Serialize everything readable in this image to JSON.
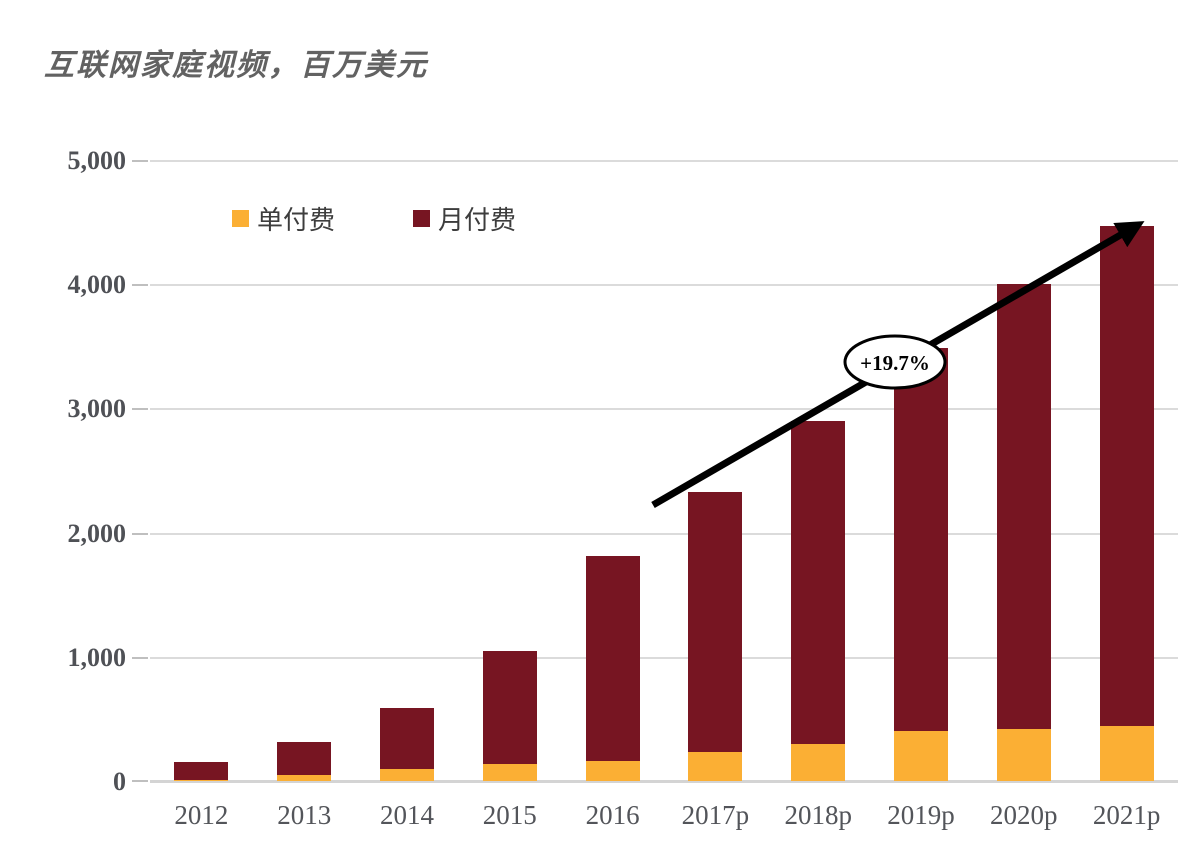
{
  "page": {
    "title": "互联网家庭视频，百万美元"
  },
  "chart_data": {
    "type": "bar",
    "stacked": true,
    "title": "互联网家庭视频，百万美元",
    "unit": "百万美元",
    "categories": [
      "2012",
      "2013",
      "2014",
      "2015",
      "2016",
      "2017p",
      "2018p",
      "2019p",
      "2020p",
      "2021p"
    ],
    "series": [
      {
        "name": "单付费",
        "color": "#FBAF34",
        "values": [
          10,
          45,
          95,
          135,
          165,
          230,
          300,
          400,
          420,
          440
        ]
      },
      {
        "name": "月付费",
        "color": "#771522",
        "values": [
          140,
          270,
          495,
          910,
          1650,
          2095,
          2600,
          3090,
          3580,
          4030
        ]
      }
    ],
    "stack_totals": [
      150,
      315,
      590,
      1045,
      1815,
      2325,
      2900,
      3490,
      4000,
      4470
    ],
    "xlabel": "",
    "ylabel": "",
    "ylim": [
      0,
      5000
    ],
    "yticks": [
      0,
      1000,
      2000,
      3000,
      4000,
      5000
    ],
    "ytick_labels": [
      "0",
      "1,000",
      "2,000",
      "3,000",
      "4,000",
      "5,000"
    ],
    "grid": true,
    "legend_position": "inside-top-left",
    "annotation": {
      "text": "+19.7%",
      "type": "cagr-growth-arrow",
      "from_category": "2016",
      "to_category": "2021p"
    }
  },
  "colors": {
    "bar_single_pay": "#FBAF34",
    "bar_monthly_pay": "#771522",
    "title_text": "#626262",
    "axis_text": "#4f5156",
    "gridline": "#dbdbdb",
    "arrow": "#000000",
    "annotation_bubble_fill": "#ffffff",
    "annotation_bubble_border": "#000000"
  }
}
